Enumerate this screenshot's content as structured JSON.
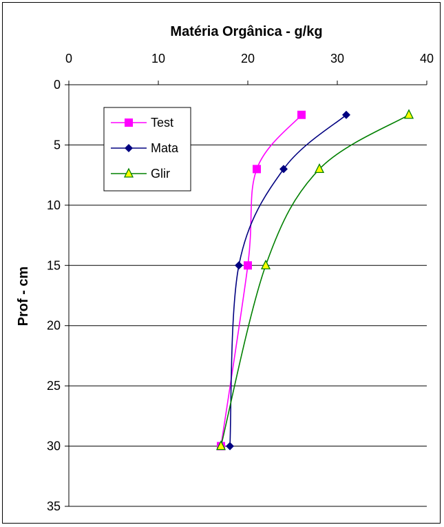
{
  "chart_data": {
    "type": "line",
    "title": "Matéria Orgânica - g/kg",
    "xlabel": "",
    "ylabel": "Prof - cm",
    "x_axis_position": "top",
    "y_axis_inverted": true,
    "xlim": [
      0,
      40
    ],
    "ylim": [
      0,
      35
    ],
    "x_ticks": [
      "0",
      "10",
      "20",
      "30",
      "40"
    ],
    "y_ticks": [
      "0",
      "5",
      "10",
      "15",
      "20",
      "25",
      "30",
      "35"
    ],
    "grid": "horizontal",
    "legend_position": "top-left",
    "series": [
      {
        "name": "Test",
        "color": "#ff00ff",
        "marker": "square",
        "points": [
          {
            "x": 26,
            "y": 2.5
          },
          {
            "x": 21,
            "y": 7
          },
          {
            "x": 20,
            "y": 15
          },
          {
            "x": 17,
            "y": 30
          }
        ]
      },
      {
        "name": "Mata",
        "color": "#000080",
        "marker": "diamond",
        "points": [
          {
            "x": 31,
            "y": 2.5
          },
          {
            "x": 24,
            "y": 7
          },
          {
            "x": 19,
            "y": 15
          },
          {
            "x": 18,
            "y": 30
          }
        ]
      },
      {
        "name": "Glir",
        "color": "#008000",
        "marker": "triangle",
        "marker_fill": "#ffff00",
        "points": [
          {
            "x": 38,
            "y": 2.5
          },
          {
            "x": 28,
            "y": 7
          },
          {
            "x": 22,
            "y": 15
          },
          {
            "x": 17,
            "y": 30
          }
        ]
      }
    ]
  }
}
